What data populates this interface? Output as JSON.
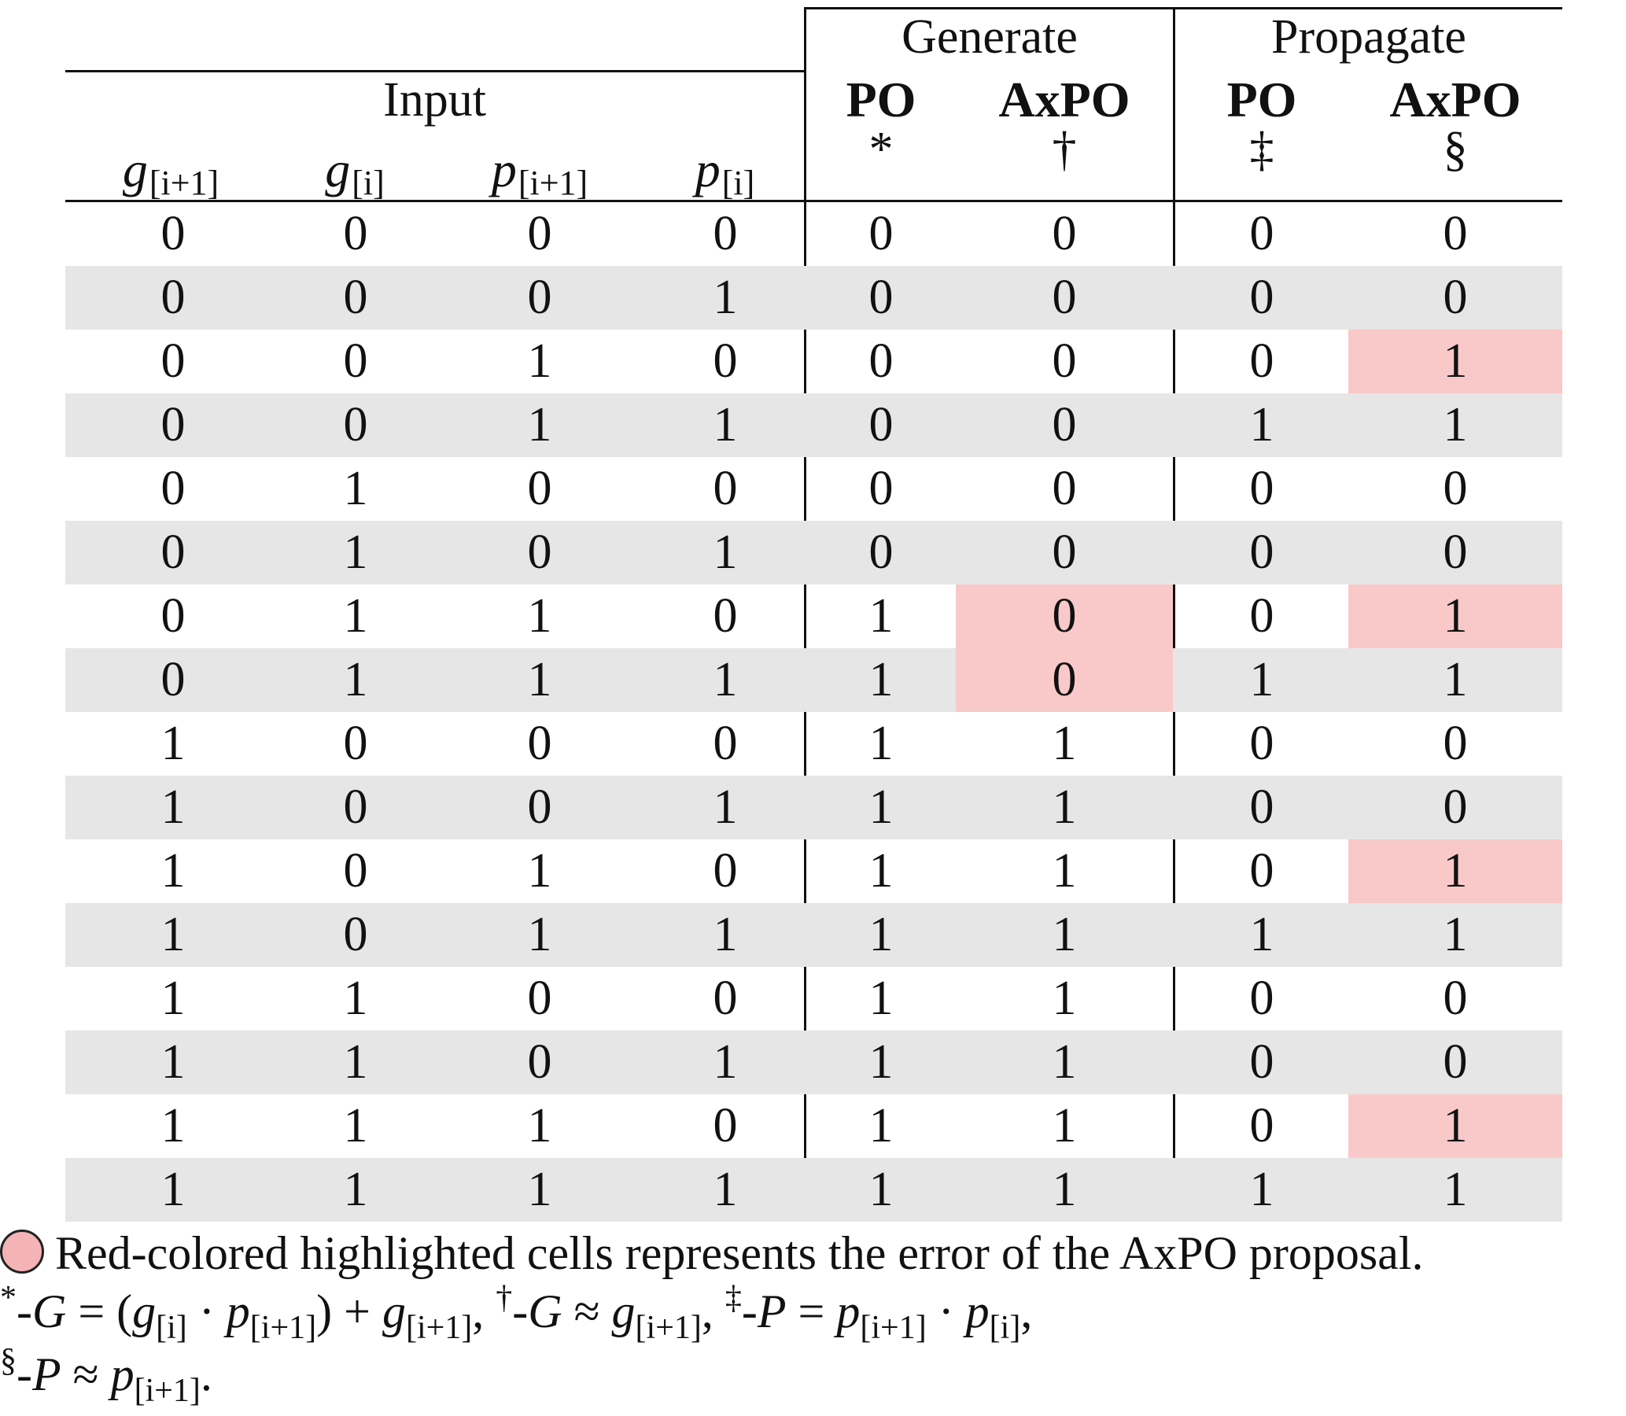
{
  "header": {
    "input_label": "Input",
    "generate_label": "Generate",
    "propagate_label": "Propagate",
    "gen_po_label": "PO",
    "gen_axpo_label": "AxPO",
    "prop_po_label": "PO",
    "prop_axpo_label": "AxPO",
    "gen_po_symbol": "*",
    "gen_axpo_symbol": "†",
    "prop_po_symbol": "‡",
    "prop_axpo_symbol": "§",
    "col_g_next_base": "g",
    "col_g_next_sub": "[i+1]",
    "col_g_cur_base": "g",
    "col_g_cur_sub": "[i]",
    "col_p_next_base": "p",
    "col_p_next_sub": "[i+1]",
    "col_p_cur_base": "p",
    "col_p_cur_sub": "[i]"
  },
  "rows": [
    [
      "0",
      "0",
      "0",
      "0",
      "0",
      "0",
      "0",
      "0"
    ],
    [
      "0",
      "0",
      "0",
      "1",
      "0",
      "0",
      "0",
      "0"
    ],
    [
      "0",
      "0",
      "1",
      "0",
      "0",
      "0",
      "0",
      "1"
    ],
    [
      "0",
      "0",
      "1",
      "1",
      "0",
      "0",
      "1",
      "1"
    ],
    [
      "0",
      "1",
      "0",
      "0",
      "0",
      "0",
      "0",
      "0"
    ],
    [
      "0",
      "1",
      "0",
      "1",
      "0",
      "0",
      "0",
      "0"
    ],
    [
      "0",
      "1",
      "1",
      "0",
      "1",
      "0",
      "0",
      "1"
    ],
    [
      "0",
      "1",
      "1",
      "1",
      "1",
      "0",
      "1",
      "1"
    ],
    [
      "1",
      "0",
      "0",
      "0",
      "1",
      "1",
      "0",
      "0"
    ],
    [
      "1",
      "0",
      "0",
      "1",
      "1",
      "1",
      "0",
      "0"
    ],
    [
      "1",
      "0",
      "1",
      "0",
      "1",
      "1",
      "0",
      "1"
    ],
    [
      "1",
      "0",
      "1",
      "1",
      "1",
      "1",
      "1",
      "1"
    ],
    [
      "1",
      "1",
      "0",
      "0",
      "1",
      "1",
      "0",
      "0"
    ],
    [
      "1",
      "1",
      "0",
      "1",
      "1",
      "1",
      "0",
      "0"
    ],
    [
      "1",
      "1",
      "1",
      "0",
      "1",
      "1",
      "0",
      "1"
    ],
    [
      "1",
      "1",
      "1",
      "1",
      "1",
      "1",
      "1",
      "1"
    ]
  ],
  "highlights": [
    {
      "row": 2,
      "col": 7
    },
    {
      "row": 6,
      "col": 5
    },
    {
      "row": 6,
      "col": 7
    },
    {
      "row": 7,
      "col": 5
    },
    {
      "row": 10,
      "col": 7
    },
    {
      "row": 14,
      "col": 7
    }
  ],
  "colors": {
    "stripe": "#e6e6e6",
    "error_highlight": "#f9c9ca",
    "legend_dot": "#f4b3b5"
  },
  "notes": {
    "legend_text": "Red-colored highlighted cells represents the error of the AxPO proposal.",
    "f_star": "*",
    "f_dagger": "†",
    "f_ddagger": "‡",
    "f_section": "§",
    "dash": "-",
    "var_G": "G",
    "var_P": "P",
    "eq": "=",
    "approx": "≈",
    "plus": "+",
    "cdot": "·",
    "lparen": "(",
    "rparen": ")",
    "comma": ",",
    "period": ".",
    "g": "g",
    "p": "p",
    "sub_i": "[i]",
    "sub_i1": "[i+1]"
  }
}
